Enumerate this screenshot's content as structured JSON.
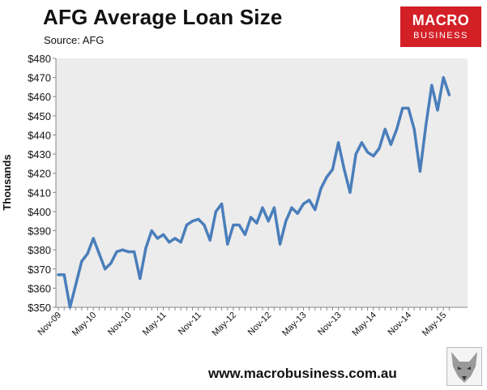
{
  "header": {
    "title": "AFG Average Loan Size",
    "source": "Source: AFG"
  },
  "logo": {
    "line1": "MACRO",
    "line2": "BUSINESS",
    "color": "#d32027"
  },
  "footer": {
    "url": "www.macrobusiness.com.au",
    "icon": "fox-icon"
  },
  "colors": {
    "line": "#4a7ebb",
    "plot_bg": "#ececec"
  },
  "chart_data": {
    "type": "line",
    "title": "AFG Average Loan Size",
    "ylabel": "Thousands",
    "xlabel": "",
    "ylim": [
      350,
      480
    ],
    "yticks": [
      350,
      360,
      370,
      380,
      390,
      400,
      410,
      420,
      430,
      440,
      450,
      460,
      470,
      480
    ],
    "ytick_labels": [
      "$350",
      "$360",
      "$370",
      "$380",
      "$390",
      "$400",
      "$410",
      "$420",
      "$430",
      "$440",
      "$450",
      "$460",
      "$470",
      "$480"
    ],
    "x_tick_labels": [
      "Nov-09",
      "May-10",
      "Nov-10",
      "May-11",
      "Nov-11",
      "May-12",
      "Nov-12",
      "May-13",
      "Nov-13",
      "May-14",
      "Nov-14",
      "May-15"
    ],
    "x_tick_every": 6,
    "grid": false,
    "series": [
      {
        "values": [
          367,
          367,
          350,
          362,
          374,
          378,
          386,
          378,
          370,
          373,
          379,
          380,
          379,
          379,
          365,
          381,
          390,
          386,
          388,
          384,
          386,
          384,
          393,
          395,
          396,
          393,
          385,
          400,
          404,
          383,
          393,
          393,
          388,
          397,
          394,
          402,
          395,
          402,
          383,
          395,
          402,
          399,
          404,
          406,
          401,
          412,
          418,
          422,
          436,
          422,
          410,
          430,
          436,
          431,
          429,
          433,
          443,
          435,
          443,
          454,
          454,
          443,
          421,
          445,
          466,
          453,
          470,
          461
        ]
      }
    ]
  }
}
